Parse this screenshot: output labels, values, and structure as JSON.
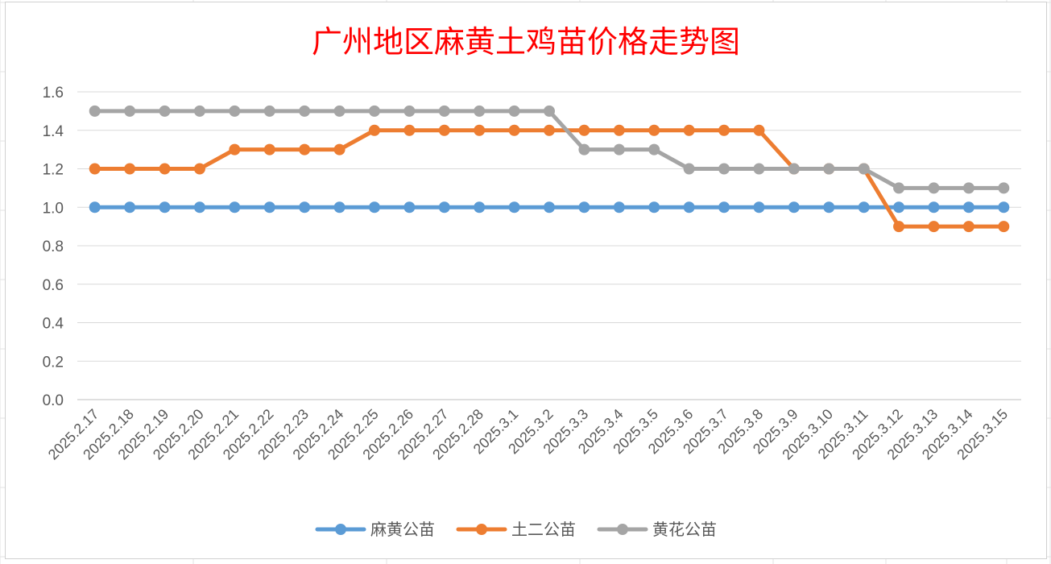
{
  "chart_data": {
    "type": "line",
    "title": "广州地区麻黄土鸡苗价格走势图",
    "xlabel": "",
    "ylabel": "",
    "ylim": [
      0,
      1.6
    ],
    "yticks": [
      "0.0",
      "0.2",
      "0.4",
      "0.6",
      "0.8",
      "1.0",
      "1.2",
      "1.4",
      "1.6"
    ],
    "grid": true,
    "legend_position": "bottom",
    "categories": [
      "2025.2.17",
      "2025.2.18",
      "2025.2.19",
      "2025.2.20",
      "2025.2.21",
      "2025.2.22",
      "2025.2.23",
      "2025.2.24",
      "2025.2.25",
      "2025.2.26",
      "2025.2.27",
      "2025.2.28",
      "2025.3.1",
      "2025.3.2",
      "2025.3.3",
      "2025.3.4",
      "2025.3.5",
      "2025.3.6",
      "2025.3.7",
      "2025.3.8",
      "2025.3.9",
      "2025.3.10",
      "2025.3.11",
      "2025.3.12",
      "2025.3.13",
      "2025.3.14",
      "2025.3.15"
    ],
    "series": [
      {
        "name": "麻黄公苗",
        "color": "#5b9bd5",
        "values": [
          1.0,
          1.0,
          1.0,
          1.0,
          1.0,
          1.0,
          1.0,
          1.0,
          1.0,
          1.0,
          1.0,
          1.0,
          1.0,
          1.0,
          1.0,
          1.0,
          1.0,
          1.0,
          1.0,
          1.0,
          1.0,
          1.0,
          1.0,
          1.0,
          1.0,
          1.0,
          1.0
        ]
      },
      {
        "name": "土二公苗",
        "color": "#ed7d31",
        "values": [
          1.2,
          1.2,
          1.2,
          1.2,
          1.3,
          1.3,
          1.3,
          1.3,
          1.4,
          1.4,
          1.4,
          1.4,
          1.4,
          1.4,
          1.4,
          1.4,
          1.4,
          1.4,
          1.4,
          1.4,
          1.2,
          1.2,
          1.2,
          0.9,
          0.9,
          0.9,
          0.9
        ]
      },
      {
        "name": "黄花公苗",
        "color": "#a5a5a5",
        "values": [
          1.5,
          1.5,
          1.5,
          1.5,
          1.5,
          1.5,
          1.5,
          1.5,
          1.5,
          1.5,
          1.5,
          1.5,
          1.5,
          1.5,
          1.3,
          1.3,
          1.3,
          1.2,
          1.2,
          1.2,
          1.2,
          1.2,
          1.2,
          1.1,
          1.1,
          1.1,
          1.1
        ]
      }
    ]
  }
}
